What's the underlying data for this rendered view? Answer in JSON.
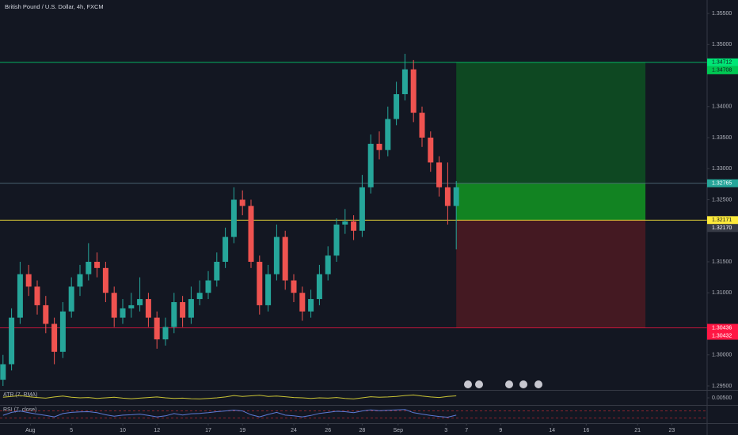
{
  "chart_data": {
    "type": "candlestick",
    "title": "British Pound / U.S. Dollar, 4h, FXCM",
    "x": [
      -2,
      -1.5,
      -1,
      -0.5,
      0,
      0.5,
      1,
      1.5,
      2,
      2.5,
      3,
      3.5,
      4,
      4.5,
      5,
      5.5,
      6,
      6.5,
      7,
      7.5,
      8,
      8.5,
      9,
      9.5,
      10,
      10.5,
      11,
      11.5,
      12,
      12.5,
      13,
      13.5,
      14,
      14.5,
      15,
      15.5,
      16,
      16.5,
      17,
      17.5,
      18,
      18.5,
      19,
      19.5,
      20,
      20.5,
      21,
      21.5,
      22,
      22.5,
      23,
      23.5,
      24,
      24.5
    ],
    "open": [
      1.296,
      1.2985,
      1.306,
      1.313,
      1.311,
      1.308,
      1.305,
      1.3005,
      1.307,
      1.311,
      1.313,
      1.315,
      1.314,
      1.31,
      1.306,
      1.3075,
      1.308,
      1.309,
      1.306,
      1.3025,
      1.3045,
      1.3085,
      1.306,
      1.309,
      1.31,
      1.312,
      1.315,
      1.319,
      1.325,
      1.324,
      1.315,
      1.308,
      1.313,
      1.319,
      1.312,
      1.31,
      1.307,
      1.309,
      1.313,
      1.316,
      1.321,
      1.3215,
      1.32,
      1.327,
      1.334,
      1.333,
      1.338,
      1.342,
      1.346,
      1.339,
      1.335,
      1.331,
      1.327,
      1.324
    ],
    "high": [
      1.3,
      1.3075,
      1.315,
      1.3145,
      1.312,
      1.3095,
      1.306,
      1.3085,
      1.3125,
      1.3145,
      1.318,
      1.3165,
      1.315,
      1.311,
      1.309,
      1.31,
      1.3125,
      1.31,
      1.307,
      1.306,
      1.31,
      1.3095,
      1.311,
      1.312,
      1.3135,
      1.3165,
      1.3205,
      1.327,
      1.3265,
      1.325,
      1.316,
      1.3145,
      1.321,
      1.32,
      1.313,
      1.311,
      1.3105,
      1.3145,
      1.3175,
      1.322,
      1.3235,
      1.3225,
      1.329,
      1.3355,
      1.336,
      1.34,
      1.344,
      1.3485,
      1.3475,
      1.34,
      1.336,
      1.332,
      1.331,
      1.328
    ],
    "low": [
      1.295,
      1.2975,
      1.305,
      1.3095,
      1.3065,
      1.3035,
      1.2985,
      1.2995,
      1.306,
      1.3095,
      1.312,
      1.3125,
      1.3085,
      1.3045,
      1.305,
      1.306,
      1.307,
      1.3045,
      1.301,
      1.3015,
      1.3035,
      1.3045,
      1.305,
      1.308,
      1.309,
      1.311,
      1.314,
      1.318,
      1.3225,
      1.314,
      1.3065,
      1.307,
      1.312,
      1.3105,
      1.3085,
      1.3055,
      1.306,
      1.308,
      1.312,
      1.315,
      1.3195,
      1.3185,
      1.319,
      1.326,
      1.3315,
      1.332,
      1.337,
      1.341,
      1.3375,
      1.3335,
      1.3295,
      1.3255,
      1.321,
      1.317
    ],
    "close": [
      1.2985,
      1.306,
      1.313,
      1.311,
      1.308,
      1.305,
      1.3005,
      1.307,
      1.311,
      1.313,
      1.315,
      1.314,
      1.31,
      1.306,
      1.3075,
      1.308,
      1.309,
      1.306,
      1.3025,
      1.3045,
      1.3085,
      1.306,
      1.309,
      1.31,
      1.312,
      1.315,
      1.319,
      1.325,
      1.324,
      1.315,
      1.308,
      1.313,
      1.319,
      1.312,
      1.31,
      1.307,
      1.309,
      1.313,
      1.316,
      1.321,
      1.3215,
      1.32,
      1.327,
      1.334,
      1.333,
      1.338,
      1.342,
      1.346,
      1.339,
      1.335,
      1.331,
      1.327,
      1.324,
      1.327
    ],
    "up_color": "#26a69a",
    "down_color": "#ef5350",
    "xlim": [
      -2.176,
      39.167
    ],
    "ylim": [
      1.35717,
      1.29436
    ],
    "xticks": [
      {
        "value": -0.4,
        "label": "Aug"
      },
      {
        "value": 2,
        "label": "5"
      },
      {
        "value": 5,
        "label": "10"
      },
      {
        "value": 7,
        "label": "12"
      },
      {
        "value": 10,
        "label": "17"
      },
      {
        "value": 12,
        "label": "19"
      },
      {
        "value": 15,
        "label": "24"
      },
      {
        "value": 17,
        "label": "26"
      },
      {
        "value": 19,
        "label": "28"
      },
      {
        "value": 21.1,
        "label": "Sep"
      },
      {
        "value": 23.9,
        "label": "3"
      },
      {
        "value": 25.1,
        "label": "7"
      },
      {
        "value": 27.1,
        "label": "9"
      },
      {
        "value": 30.1,
        "label": "14"
      },
      {
        "value": 32.1,
        "label": "16"
      },
      {
        "value": 35.1,
        "label": "21"
      },
      {
        "value": 37.1,
        "label": "23"
      }
    ],
    "yticks": [
      {
        "value": 1.355,
        "label": "1.35500"
      },
      {
        "value": 1.35,
        "label": "1.35000"
      },
      {
        "value": 1.34,
        "label": "1.34000"
      },
      {
        "value": 1.335,
        "label": "1.33500"
      },
      {
        "value": 1.33,
        "label": "1.33000"
      },
      {
        "value": 1.325,
        "label": "1.32500"
      },
      {
        "value": 1.315,
        "label": "1.31500"
      },
      {
        "value": 1.31,
        "label": "1.31000"
      },
      {
        "value": 1.3,
        "label": "1.30000"
      },
      {
        "value": 1.295,
        "label": "1.29500"
      }
    ],
    "grid": false,
    "position": {
      "start": 24.5,
      "end": 35.56,
      "target": 1.34712,
      "entry": 1.32171,
      "stop": 1.30436,
      "last": 1.32765
    },
    "price_tags": [
      {
        "value": 1.34712,
        "label": "1.34712",
        "color": "#00e676"
      },
      {
        "value": 1.34708,
        "label": "1.34708",
        "color": "#00c853"
      },
      {
        "value": 1.32765,
        "label": "1.32765",
        "color": "#26a69a"
      },
      {
        "value": 1.32171,
        "label": "1.32171",
        "color": "#ffeb3b"
      },
      {
        "value": 1.3217,
        "label": "1.32170",
        "color": "#363a45"
      },
      {
        "value": 1.30436,
        "label": "1.30436",
        "color": "#ff1744"
      },
      {
        "value": 1.30432,
        "label": "1.30432",
        "color": "#ff1744"
      }
    ],
    "indicators": [
      {
        "name": "ATR (7, RMA)",
        "color": "#c9c335",
        "ylim": [
          0.0025,
          0.0075
        ],
        "yticks": [
          {
            "value": 0.005,
            "label": "0.00500"
          }
        ],
        "values": [
          0.0052,
          0.0055,
          0.0058,
          0.0054,
          0.0051,
          0.0049,
          0.0053,
          0.0056,
          0.0052,
          0.005,
          0.0051,
          0.0048,
          0.005,
          0.0052,
          0.0049,
          0.0047,
          0.0049,
          0.0051,
          0.0053,
          0.005,
          0.0048,
          0.0049,
          0.0047,
          0.0046,
          0.0048,
          0.005,
          0.0053,
          0.0058,
          0.0055,
          0.0057,
          0.0059,
          0.0055,
          0.0056,
          0.0054,
          0.0051,
          0.005,
          0.0048,
          0.005,
          0.0049,
          0.0051,
          0.0048,
          0.0046,
          0.005,
          0.0054,
          0.0052,
          0.0053,
          0.0055,
          0.0058,
          0.006,
          0.0056,
          0.0053,
          0.0051,
          0.0055,
          0.0057
        ]
      },
      {
        "name": "RSI (7, close)",
        "color": "#5b7bd5",
        "ylim": [
          0,
          100
        ],
        "levels": [
          30,
          70
        ],
        "values": [
          45,
          62,
          70,
          60,
          52,
          44,
          36,
          55,
          62,
          65,
          66,
          60,
          48,
          40,
          46,
          48,
          52,
          44,
          36,
          42,
          55,
          47,
          54,
          56,
          60,
          66,
          70,
          75,
          70,
          48,
          36,
          50,
          62,
          46,
          42,
          36,
          44,
          56,
          62,
          68,
          66,
          60,
          70,
          76,
          72,
          74,
          76,
          78,
          60,
          52,
          44,
          38,
          34,
          46
        ]
      }
    ]
  }
}
